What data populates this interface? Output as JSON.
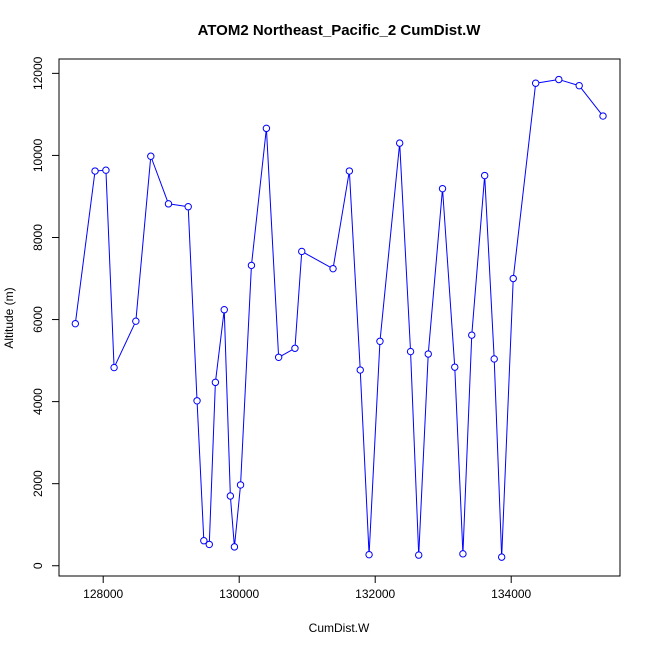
{
  "chart_data": {
    "type": "line",
    "title": "ATOM2 Northeast_Pacific_2 CumDist.W",
    "xlabel": "CumDist.W",
    "ylabel": "Altitude (m)",
    "xlim": [
      127350,
      135600
    ],
    "ylim": [
      -250,
      12350
    ],
    "x_ticks": [
      128000,
      130000,
      132000,
      134000
    ],
    "y_ticks": [
      0,
      2000,
      4000,
      6000,
      8000,
      10000,
      12000
    ],
    "grid": false,
    "line_color": "#0000ff",
    "marker": "open-circle",
    "series": [
      {
        "points": [
          [
            127590,
            5900
          ],
          [
            127880,
            9620
          ],
          [
            128040,
            9640
          ],
          [
            128160,
            4830
          ],
          [
            128480,
            5960
          ],
          [
            128700,
            9980
          ],
          [
            128960,
            8820
          ],
          [
            129250,
            8750
          ],
          [
            129380,
            4020
          ],
          [
            129480,
            610
          ],
          [
            129560,
            520
          ],
          [
            129650,
            4470
          ],
          [
            129780,
            6240
          ],
          [
            129870,
            1700
          ],
          [
            129930,
            460
          ],
          [
            130020,
            1970
          ],
          [
            130180,
            7320
          ],
          [
            130400,
            10660
          ],
          [
            130580,
            5080
          ],
          [
            130820,
            5300
          ],
          [
            130920,
            7660
          ],
          [
            131380,
            7240
          ],
          [
            131620,
            9620
          ],
          [
            131780,
            4770
          ],
          [
            131910,
            270
          ],
          [
            132070,
            5470
          ],
          [
            132360,
            10300
          ],
          [
            132520,
            5220
          ],
          [
            132640,
            260
          ],
          [
            132780,
            5160
          ],
          [
            132990,
            9190
          ],
          [
            133170,
            4840
          ],
          [
            133290,
            290
          ],
          [
            133420,
            5620
          ],
          [
            133610,
            9510
          ],
          [
            133750,
            5040
          ],
          [
            133860,
            210
          ],
          [
            134030,
            7000
          ],
          [
            134360,
            11760
          ],
          [
            134700,
            11850
          ],
          [
            135000,
            11700
          ],
          [
            135350,
            10960
          ]
        ]
      }
    ]
  }
}
